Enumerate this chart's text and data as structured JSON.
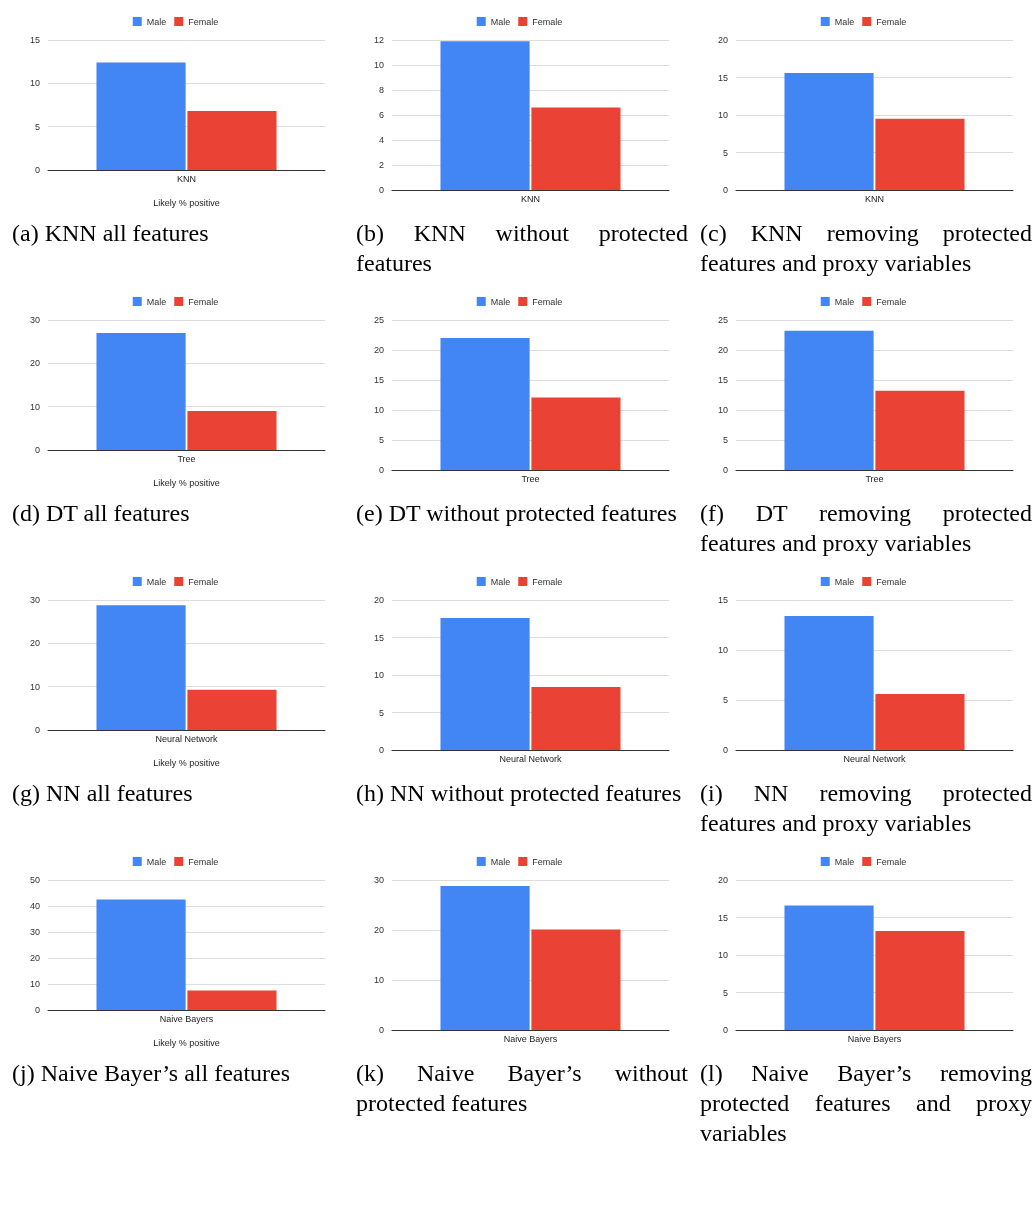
{
  "chart_data": [
    {
      "type": "bar",
      "categories": [
        "KNN"
      ],
      "xlabel": "Likely % positive",
      "series": [
        {
          "name": "Male",
          "color": "#4285f4",
          "values": [
            12.4
          ]
        },
        {
          "name": "Female",
          "color": "#ea4335",
          "values": [
            6.8
          ]
        }
      ],
      "ylim": [
        0,
        15
      ],
      "yticks": [
        0,
        5,
        10,
        15
      ],
      "grid": "y",
      "legend": "top",
      "annotations": [
        "(a) KNN all features"
      ]
    },
    {
      "type": "bar",
      "categories": [
        "KNN"
      ],
      "series": [
        {
          "name": "Male",
          "color": "#4285f4",
          "values": [
            11.9
          ]
        },
        {
          "name": "Female",
          "color": "#ea4335",
          "values": [
            6.6
          ]
        }
      ],
      "ylim": [
        0,
        12
      ],
      "yticks": [
        0,
        2,
        4,
        6,
        8,
        10,
        12
      ],
      "grid": "y",
      "legend": "top",
      "annotations": [
        "(b) KNN without protected features"
      ]
    },
    {
      "type": "bar",
      "categories": [
        "KNN"
      ],
      "series": [
        {
          "name": "Male",
          "color": "#4285f4",
          "values": [
            15.6
          ]
        },
        {
          "name": "Female",
          "color": "#ea4335",
          "values": [
            9.5
          ]
        }
      ],
      "ylim": [
        0,
        20
      ],
      "yticks": [
        0,
        5,
        10,
        15,
        20
      ],
      "grid": "y",
      "legend": "top",
      "annotations": [
        "(c) KNN removing protected features and proxy variables"
      ]
    },
    {
      "type": "bar",
      "categories": [
        "Tree"
      ],
      "xlabel": "Likely % positive",
      "series": [
        {
          "name": "Male",
          "color": "#4285f4",
          "values": [
            27
          ]
        },
        {
          "name": "Female",
          "color": "#ea4335",
          "values": [
            9
          ]
        }
      ],
      "ylim": [
        0,
        30
      ],
      "yticks": [
        0,
        10,
        20,
        30
      ],
      "grid": "y",
      "legend": "top",
      "annotations": [
        "(d) DT all features"
      ]
    },
    {
      "type": "bar",
      "categories": [
        "Tree"
      ],
      "series": [
        {
          "name": "Male",
          "color": "#4285f4",
          "values": [
            22
          ]
        },
        {
          "name": "Female",
          "color": "#ea4335",
          "values": [
            12.1
          ]
        }
      ],
      "ylim": [
        0,
        25
      ],
      "yticks": [
        0,
        5,
        10,
        15,
        20,
        25
      ],
      "grid": "y",
      "legend": "top",
      "annotations": [
        "(e) DT without protected features"
      ]
    },
    {
      "type": "bar",
      "categories": [
        "Tree"
      ],
      "series": [
        {
          "name": "Male",
          "color": "#4285f4",
          "values": [
            23.2
          ]
        },
        {
          "name": "Female",
          "color": "#ea4335",
          "values": [
            13.2
          ]
        }
      ],
      "ylim": [
        0,
        25
      ],
      "yticks": [
        0,
        5,
        10,
        15,
        20,
        25
      ],
      "grid": "y",
      "legend": "top",
      "annotations": [
        "(f) DT removing protected features and proxy variables"
      ]
    },
    {
      "type": "bar",
      "categories": [
        "Neural Network"
      ],
      "xlabel": "Likely % positive",
      "series": [
        {
          "name": "Male",
          "color": "#4285f4",
          "values": [
            28.8
          ]
        },
        {
          "name": "Female",
          "color": "#ea4335",
          "values": [
            9.3
          ]
        }
      ],
      "ylim": [
        0,
        30
      ],
      "yticks": [
        0,
        10,
        20,
        30
      ],
      "grid": "y",
      "legend": "top",
      "annotations": [
        "(g) NN all features"
      ]
    },
    {
      "type": "bar",
      "categories": [
        "Neural Network"
      ],
      "series": [
        {
          "name": "Male",
          "color": "#4285f4",
          "values": [
            17.6
          ]
        },
        {
          "name": "Female",
          "color": "#ea4335",
          "values": [
            8.4
          ]
        }
      ],
      "ylim": [
        0,
        20
      ],
      "yticks": [
        0,
        5,
        10,
        15,
        20
      ],
      "grid": "y",
      "legend": "top",
      "annotations": [
        "(h) NN without protected features"
      ]
    },
    {
      "type": "bar",
      "categories": [
        "Neural Network"
      ],
      "series": [
        {
          "name": "Male",
          "color": "#4285f4",
          "values": [
            13.4
          ]
        },
        {
          "name": "Female",
          "color": "#ea4335",
          "values": [
            5.6
          ]
        }
      ],
      "ylim": [
        0,
        15
      ],
      "yticks": [
        0,
        5,
        10,
        15
      ],
      "grid": "y",
      "legend": "top",
      "annotations": [
        "(i) NN removing protected features and proxy variables"
      ]
    },
    {
      "type": "bar",
      "categories": [
        "Naive Bayers"
      ],
      "xlabel": "Likely % positive",
      "series": [
        {
          "name": "Male",
          "color": "#4285f4",
          "values": [
            42.5
          ]
        },
        {
          "name": "Female",
          "color": "#ea4335",
          "values": [
            7.5
          ]
        }
      ],
      "ylim": [
        0,
        50
      ],
      "yticks": [
        0,
        10,
        20,
        30,
        40,
        50
      ],
      "grid": "y",
      "legend": "top",
      "annotations": [
        "(j) Naive Bayer’s all features"
      ]
    },
    {
      "type": "bar",
      "categories": [
        "Naive Bayers"
      ],
      "series": [
        {
          "name": "Male",
          "color": "#4285f4",
          "values": [
            28.8
          ]
        },
        {
          "name": "Female",
          "color": "#ea4335",
          "values": [
            20.1
          ]
        }
      ],
      "ylim": [
        0,
        30
      ],
      "yticks": [
        0,
        10,
        20,
        30
      ],
      "grid": "y",
      "legend": "top",
      "annotations": [
        "(k) Naive Bayer’s without protected features"
      ]
    },
    {
      "type": "bar",
      "categories": [
        "Naive Bayers"
      ],
      "series": [
        {
          "name": "Male",
          "color": "#4285f4",
          "values": [
            16.6
          ]
        },
        {
          "name": "Female",
          "color": "#ea4335",
          "values": [
            13.2
          ]
        }
      ],
      "ylim": [
        0,
        20
      ],
      "yticks": [
        0,
        5,
        10,
        15,
        20
      ],
      "grid": "y",
      "legend": "top",
      "annotations": [
        "(l) Naive Bayer’s removing protected features and proxy variables"
      ]
    }
  ]
}
